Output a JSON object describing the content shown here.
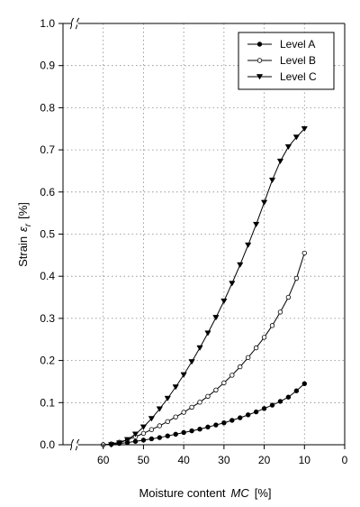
{
  "chart_data": {
    "type": "line",
    "xlabel": {
      "main": "Moisture content",
      "symbol": "MC",
      "unit": "[%]"
    },
    "ylabel": {
      "main": "Strain",
      "symbol": "ε",
      "subscript": "r",
      "unit": "[%]"
    },
    "xlim": [
      70,
      0
    ],
    "ylim": [
      0,
      1.0
    ],
    "x_reversed": true,
    "axis_breaks": [
      "x",
      "y"
    ],
    "grid": true,
    "legend_position": "top-right",
    "x_ticks": [
      "60",
      "50",
      "40",
      "30",
      "20",
      "10",
      "0"
    ],
    "y_ticks": [
      "0.0",
      "0.1",
      "0.2",
      "0.3",
      "0.4",
      "0.5",
      "0.6",
      "0.7",
      "0.8",
      "0.9",
      "1.0"
    ],
    "series": [
      {
        "name": "Level A",
        "marker": "filled-circle",
        "x": [
          60,
          58,
          56,
          54,
          52,
          50,
          48,
          46,
          44,
          42,
          40,
          38,
          36,
          34,
          32,
          30,
          28,
          26,
          24,
          22,
          20,
          18,
          16,
          14,
          12,
          10
        ],
        "y": [
          0.0,
          0.001,
          0.003,
          0.005,
          0.008,
          0.011,
          0.014,
          0.017,
          0.021,
          0.025,
          0.029,
          0.033,
          0.037,
          0.042,
          0.047,
          0.052,
          0.058,
          0.064,
          0.071,
          0.078,
          0.086,
          0.094,
          0.103,
          0.113,
          0.128,
          0.145
        ]
      },
      {
        "name": "Level B",
        "marker": "open-circle",
        "x": [
          60,
          58,
          56,
          54,
          52,
          50,
          48,
          46,
          44,
          42,
          40,
          38,
          36,
          34,
          32,
          30,
          28,
          26,
          24,
          22,
          20,
          18,
          16,
          14,
          12,
          10
        ],
        "y": [
          0.0,
          0.002,
          0.006,
          0.012,
          0.019,
          0.027,
          0.036,
          0.045,
          0.055,
          0.066,
          0.077,
          0.089,
          0.101,
          0.115,
          0.13,
          0.147,
          0.165,
          0.185,
          0.207,
          0.23,
          0.255,
          0.283,
          0.315,
          0.35,
          0.395,
          0.455
        ]
      },
      {
        "name": "Level C",
        "marker": "filled-triangle-down",
        "x": [
          58,
          56,
          54,
          52,
          50,
          48,
          46,
          44,
          42,
          40,
          38,
          36,
          34,
          32,
          30,
          28,
          26,
          24,
          22,
          20,
          18,
          16,
          14,
          12,
          10
        ],
        "y": [
          0.0,
          0.004,
          0.012,
          0.025,
          0.042,
          0.062,
          0.085,
          0.11,
          0.137,
          0.166,
          0.197,
          0.23,
          0.265,
          0.302,
          0.341,
          0.383,
          0.427,
          0.474,
          0.523,
          0.575,
          0.628,
          0.673,
          0.707,
          0.73,
          0.75
        ]
      }
    ]
  }
}
